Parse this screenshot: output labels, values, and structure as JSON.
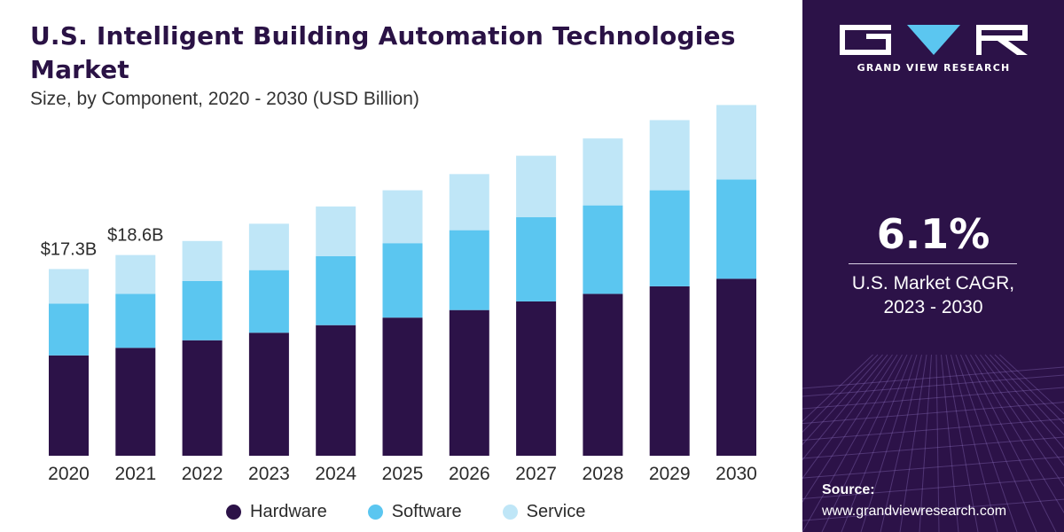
{
  "header": {
    "title": "U.S. Intelligent Building Automation Technologies Market",
    "subtitle": "Size, by Component, 2020 - 2030 (USD Billion)"
  },
  "chart_data": {
    "type": "bar",
    "stacked": true,
    "title": "U.S. Intelligent Building Automation Technologies Market",
    "subtitle": "Size, by Component, 2020 - 2030 (USD Billion)",
    "xlabel": "",
    "ylabel": "",
    "categories": [
      "2020",
      "2021",
      "2022",
      "2023",
      "2024",
      "2025",
      "2026",
      "2027",
      "2028",
      "2029",
      "2030"
    ],
    "series": [
      {
        "name": "Hardware",
        "color": "#2c1248",
        "values": [
          9.3,
          10.0,
          10.7,
          11.4,
          12.1,
          12.8,
          13.5,
          14.3,
          15.0,
          15.7,
          16.4
        ]
      },
      {
        "name": "Software",
        "color": "#5bc6f0",
        "values": [
          4.8,
          5.0,
          5.5,
          5.8,
          6.4,
          6.9,
          7.4,
          7.8,
          8.2,
          8.9,
          9.2
        ]
      },
      {
        "name": "Service",
        "color": "#bfe6f7",
        "values": [
          3.2,
          3.6,
          3.7,
          4.3,
          4.6,
          4.9,
          5.2,
          5.7,
          6.2,
          6.5,
          6.9
        ]
      }
    ],
    "data_labels": [
      {
        "category": "2020",
        "text": "$17.3B"
      },
      {
        "category": "2021",
        "text": "$18.6B"
      }
    ],
    "ylim": [
      0,
      35
    ],
    "grid": false,
    "legend": "bottom"
  },
  "legend": {
    "items": [
      {
        "label": "Hardware",
        "color": "#2c1248"
      },
      {
        "label": "Software",
        "color": "#5bc6f0"
      },
      {
        "label": "Service",
        "color": "#bfe6f7"
      }
    ]
  },
  "sidebar": {
    "brand": "GRAND VIEW RESEARCH",
    "cagr_value": "6.1%",
    "cagr_label_line1": "U.S. Market CAGR,",
    "cagr_label_line2": "2023 - 2030",
    "source_label": "Source:",
    "source_url": "www.grandviewresearch.com"
  },
  "colors": {
    "sidebar_bg": "#2c1248",
    "title_text": "#2a1245",
    "logo_accent": "#5bc6f0"
  }
}
